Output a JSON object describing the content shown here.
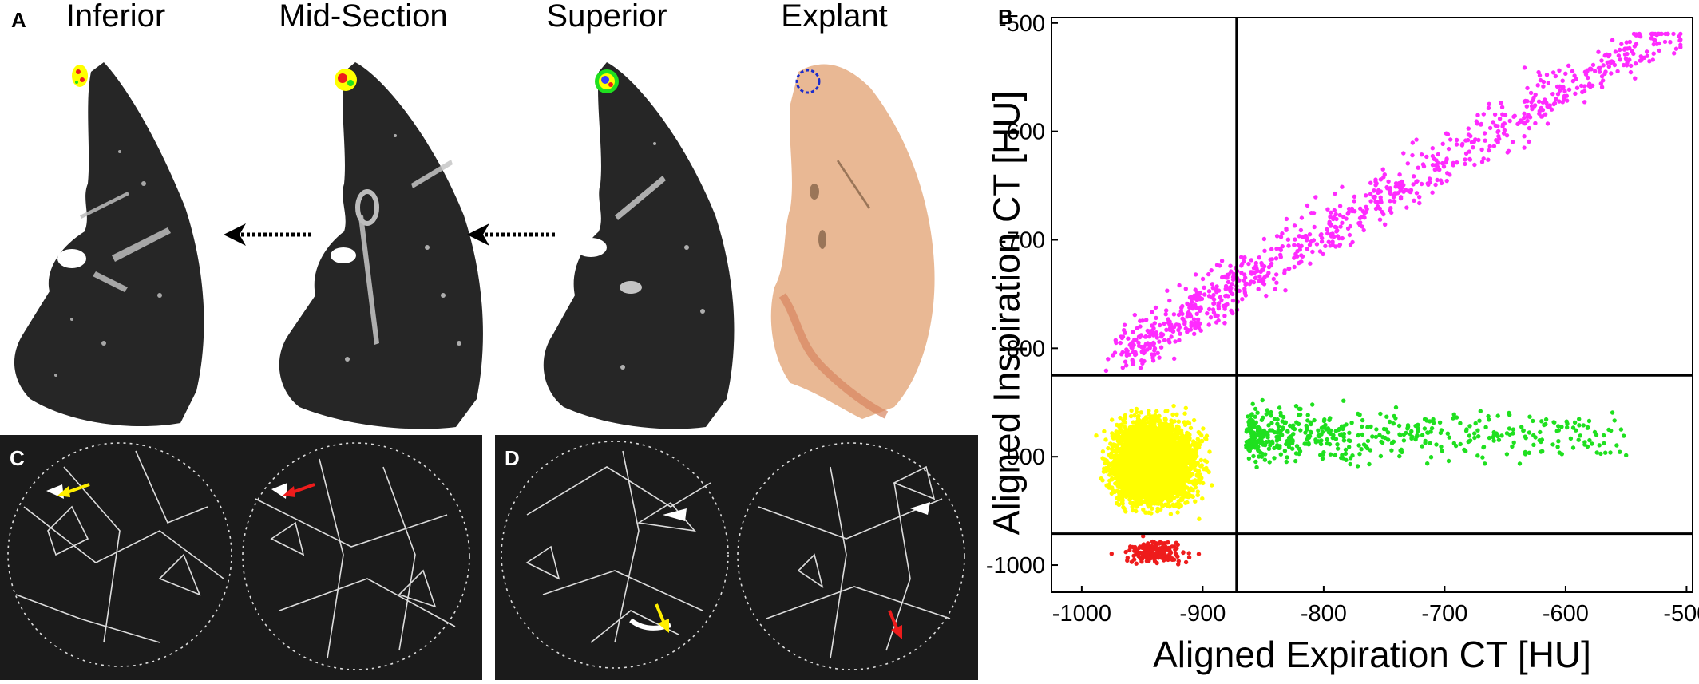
{
  "panel_a": {
    "letter": "A",
    "titles": [
      "Inferior",
      "Mid-Section",
      "Superior",
      "Explant"
    ]
  },
  "panel_b": {
    "letter": "B"
  },
  "panel_c": {
    "letter": "C"
  },
  "panel_d": {
    "letter": "D"
  },
  "colors": {
    "magenta": "#ff2bff",
    "green": "#1fe01f",
    "yellow": "#ffff00",
    "red": "#ee1c1c",
    "ct_background": "#262626",
    "explant_tissue": "#e9b894"
  },
  "chart_data": {
    "type": "scatter",
    "xlabel": "Aligned Expiration CT [HU]",
    "ylabel": "Aligned Inspiration CT [HU]",
    "xlim": [
      -1025,
      -495
    ],
    "ylim": [
      -1025,
      -495
    ],
    "xticks": [
      -1000,
      -900,
      -800,
      -700,
      -600,
      -500
    ],
    "yticks": [
      -500,
      -600,
      -700,
      -800,
      -900,
      -1000
    ],
    "thresholds": {
      "vertical_x": -872,
      "horizontal_y_upper": -825,
      "horizontal_y_lower": -971
    },
    "grid": false,
    "series": [
      {
        "color": "magenta",
        "count": 900,
        "x_range": [
          -1000,
          -505
        ],
        "y_range": [
          -825,
          -510
        ]
      },
      {
        "color": "yellow",
        "count": 4500,
        "x_range": [
          -1000,
          -872
        ],
        "y_range": [
          -971,
          -825
        ]
      },
      {
        "color": "green",
        "count": 520,
        "x_range": [
          -872,
          -550
        ],
        "y_range": [
          -971,
          -825
        ]
      },
      {
        "color": "red",
        "count": 160,
        "x_range": [
          -990,
          -875
        ],
        "y_range": [
          -1010,
          -971
        ]
      }
    ]
  }
}
